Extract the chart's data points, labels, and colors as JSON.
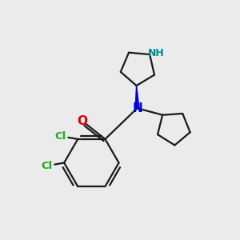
{
  "bg_color": "#ebebeb",
  "bond_color": "#1a1a1a",
  "N_color": "#0000dd",
  "NH_color": "#008888",
  "O_color": "#dd0000",
  "Cl_color": "#22aa22",
  "fig_w": 3.0,
  "fig_h": 3.0,
  "dpi": 100,
  "lw": 1.6,
  "xlim": [
    0,
    10
  ],
  "ylim": [
    0,
    10
  ]
}
